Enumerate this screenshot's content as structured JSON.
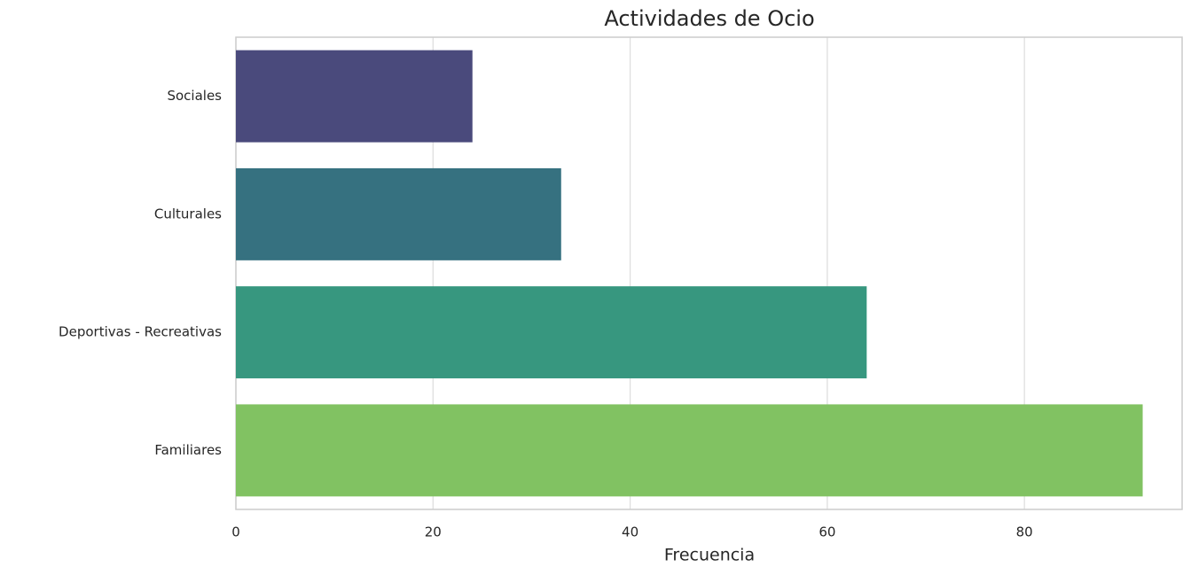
{
  "chart_data": {
    "type": "barh",
    "title": "Actividades de Ocio",
    "xlabel": "Frecuencia",
    "categories": [
      "Sociales",
      "Culturales",
      "Deportivas - Recreativas",
      "Familiares"
    ],
    "values": [
      24,
      33,
      64,
      92
    ],
    "colors": [
      "#4a4a7c",
      "#367180",
      "#37977f",
      "#81c262"
    ],
    "xlim": [
      0,
      96
    ],
    "xticks": [
      0,
      20,
      40,
      60,
      80
    ],
    "grid": true
  }
}
